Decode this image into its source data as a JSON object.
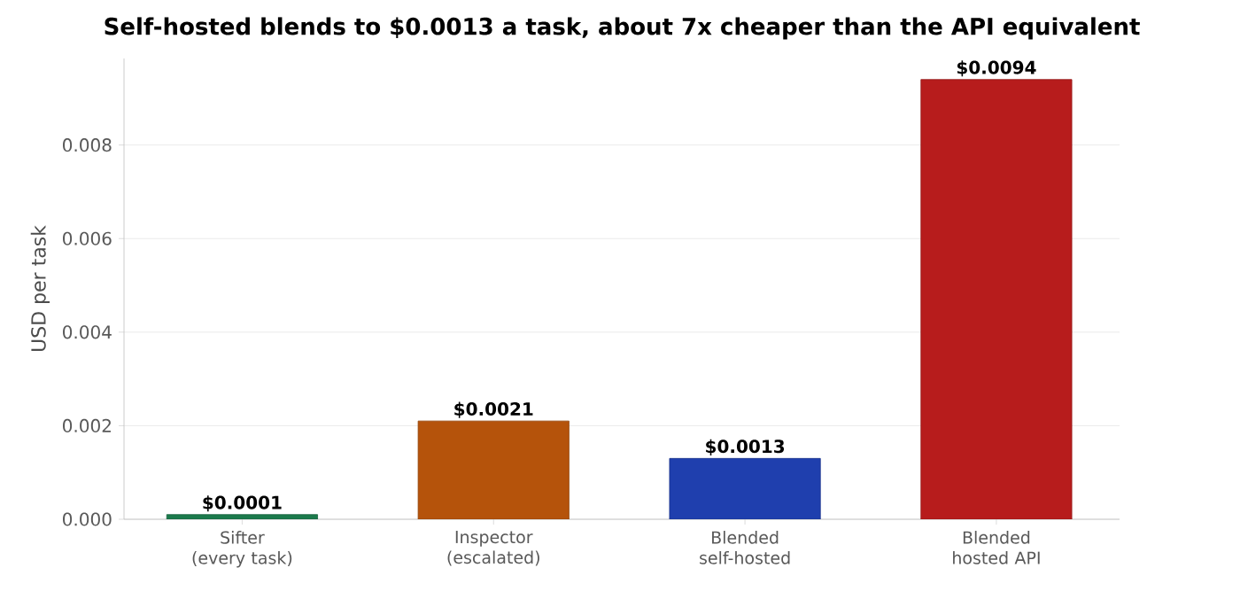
{
  "chart_data": {
    "type": "bar",
    "title": "Self-hosted blends to $0.0013 a task, about 7x cheaper than the API equivalent",
    "ylabel": "USD per task",
    "categories": [
      "Sifter (every task)",
      "Inspector (escalated)",
      "Blended self-hosted",
      "Blended hosted API"
    ],
    "values": [
      0.0001,
      0.0021,
      0.0013,
      0.0094
    ],
    "colors": [
      "#1b7a4c",
      "#b5530b",
      "#1f3fae",
      "#b71c1c"
    ],
    "value_labels": [
      "$0.0001",
      "$0.0021",
      "$0.0013",
      "$0.0094"
    ],
    "ylim": [
      0,
      0.00985
    ],
    "yticks": [
      {
        "value": 0,
        "label": "0.000"
      },
      {
        "value": 0.002,
        "label": "0.002"
      },
      {
        "value": 0.004,
        "label": "0.004"
      },
      {
        "value": 0.006,
        "label": "0.006"
      },
      {
        "value": 0.008,
        "label": "0.008"
      }
    ],
    "grid": "y"
  }
}
